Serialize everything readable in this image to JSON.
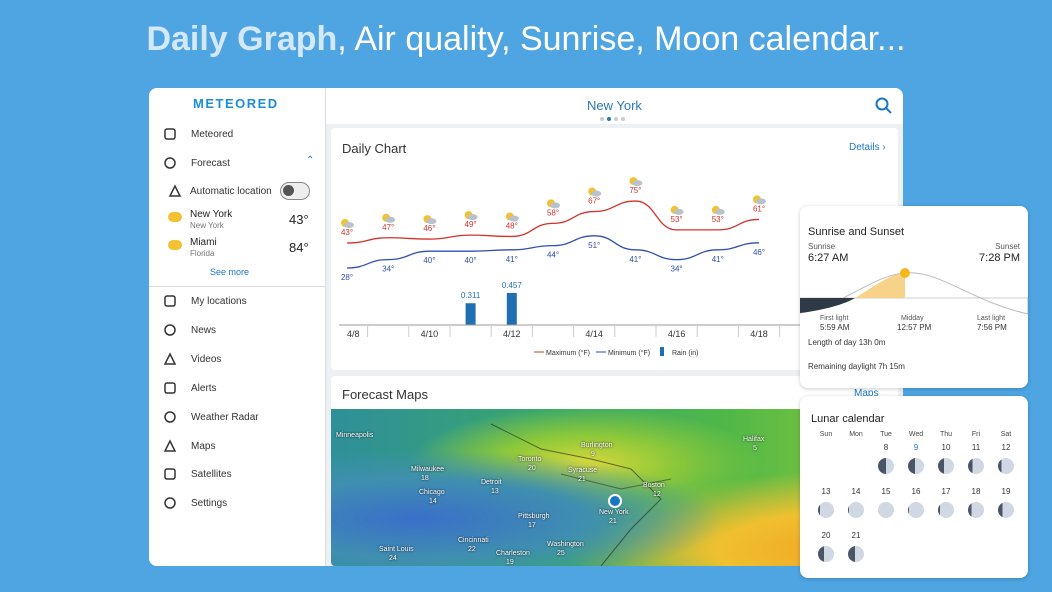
{
  "headline": {
    "highlight": "Daily Graph",
    "rest": ", Air quality, Sunrise, Moon calendar..."
  },
  "sidebar": {
    "logo": "METEORED",
    "home": "Meteored",
    "forecast": "Forecast",
    "auto_location": "Automatic location",
    "locations": [
      {
        "name": "New York",
        "region": "New York",
        "temp": "43°"
      },
      {
        "name": "Miami",
        "region": "Florida",
        "temp": "84°"
      }
    ],
    "see_more": "See more",
    "menu": [
      "My locations",
      "News",
      "Videos",
      "Alerts",
      "Weather Radar",
      "Maps",
      "Satellites",
      "Settings"
    ]
  },
  "header": {
    "location": "New York"
  },
  "daily_chart": {
    "title": "Daily Chart",
    "details": "Details",
    "categories": [
      "4/8",
      null,
      "4/10",
      null,
      "4/12",
      null,
      "4/14",
      null,
      "4/16",
      null,
      "4/18"
    ],
    "max": {
      "name": "Maximum (°F)",
      "color": "#d0342c",
      "values": [
        43,
        47,
        46,
        49,
        48,
        58,
        67,
        75,
        53,
        53,
        61
      ],
      "value_labels": [
        "43°",
        "47°",
        "46°",
        "49°",
        "48°",
        "58°",
        "67°",
        "75°",
        "53°",
        "53°",
        "61°"
      ]
    },
    "min": {
      "name": "Minimum (°F)",
      "color": "#2f4fb0",
      "values": [
        28,
        34,
        40,
        40,
        41,
        44,
        51,
        41,
        34,
        41,
        46
      ],
      "value_labels": [
        "28°",
        "34°",
        "40°",
        "40°",
        "41°",
        "44°",
        "51°",
        "41°",
        "34°",
        "41°",
        "46°"
      ]
    },
    "rain": {
      "name": "Rain (in)",
      "color": "#1f6fb2",
      "values": [
        null,
        null,
        null,
        0.311,
        0.457,
        null,
        null,
        null,
        null,
        null,
        null
      ]
    }
  },
  "forecast_maps": {
    "title": "Forecast Maps",
    "link": "Maps",
    "cities": [
      {
        "name": "Minneapolis",
        "temp": ""
      },
      {
        "name": "Toronto",
        "temp": "20"
      },
      {
        "name": "Burlington",
        "temp": "9"
      },
      {
        "name": "Halifax",
        "temp": "5"
      },
      {
        "name": "Milwaukee",
        "temp": "18"
      },
      {
        "name": "Syracuse",
        "temp": "21"
      },
      {
        "name": "Boston",
        "temp": "12"
      },
      {
        "name": "Detroit",
        "temp": "13"
      },
      {
        "name": "Chicago",
        "temp": "14"
      },
      {
        "name": "Pittsburgh",
        "temp": "17"
      },
      {
        "name": "New York",
        "temp": "21"
      },
      {
        "name": "Cincinnati",
        "temp": "22"
      },
      {
        "name": "Washington",
        "temp": "25"
      },
      {
        "name": "Charleston",
        "temp": "19"
      },
      {
        "name": "Saint Louis",
        "temp": "24"
      }
    ]
  },
  "sun": {
    "title": "Sunrise and Sunset",
    "sunrise_label": "Sunrise",
    "sunrise": "6:27 AM",
    "sunset_label": "Sunset",
    "sunset": "7:28 PM",
    "first_light_label": "First light",
    "first_light": "5:59 AM",
    "midday_label": "Midday",
    "midday": "12:57 PM",
    "last_light_label": "Last light",
    "last_light": "7:56 PM",
    "length": "Length of day 13h 0m",
    "remaining": "Remaining daylight 7h 15m"
  },
  "lunar": {
    "title": "Lunar calendar",
    "weekdays": [
      "Sun",
      "Mon",
      "Tue",
      "Wed",
      "Thu",
      "Fri",
      "Sat"
    ],
    "dates": [
      8,
      9,
      10,
      11,
      12,
      13,
      14,
      15,
      16,
      17,
      18,
      19,
      20,
      21
    ]
  }
}
